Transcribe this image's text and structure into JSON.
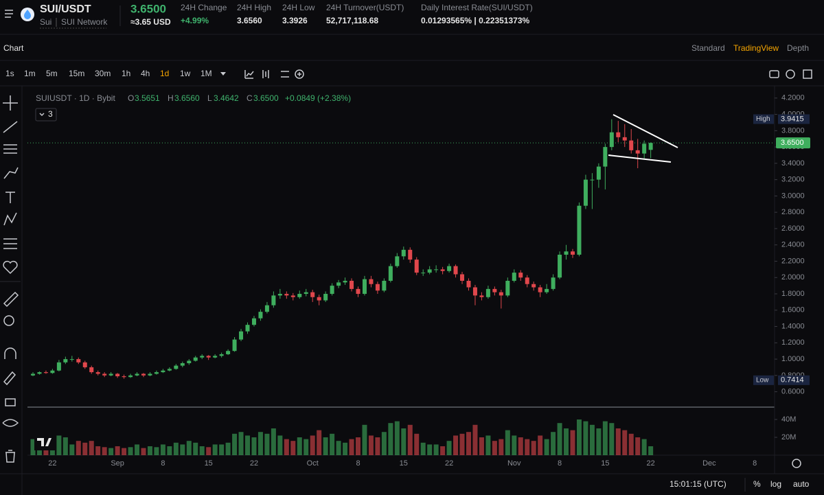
{
  "header": {
    "symbol": "SUI/USDT",
    "base": "Sui",
    "network": "SUI Network",
    "price": "3.6500",
    "usd_price": "≈3.65 USD",
    "stats": [
      {
        "label": "24H Change",
        "value": "+4.99%"
      },
      {
        "label": "24H High",
        "value": "3.6560"
      },
      {
        "label": "24H Low",
        "value": "3.3926"
      },
      {
        "label": "24H Turnover(USDT)",
        "value": "52,717,118.68"
      },
      {
        "label": "Daily Interest Rate(SUI/USDT)",
        "value": "0.01293565% | 0.22351373%"
      }
    ]
  },
  "tabs": {
    "title": "Chart",
    "views": [
      "Standard",
      "TradingView",
      "Depth"
    ],
    "active_view": 1
  },
  "timeframes": {
    "items": [
      "1s",
      "1m",
      "5m",
      "15m",
      "30m",
      "1h",
      "4h",
      "1d",
      "1w",
      "1M"
    ],
    "active": 7
  },
  "legend": {
    "symbol": "SUIUSDT · 1D · Bybit",
    "o_label": "O",
    "o": "3.5651",
    "h_label": "H",
    "h": "3.6560",
    "l_label": "L",
    "l": "3.4642",
    "c_label": "C",
    "c": "3.6500",
    "change": "+0.0849 (+2.38%)",
    "indicators": "3"
  },
  "chart_data": {
    "type": "candlestick",
    "up_color": "#3fae5e",
    "down_color": "#e0474c",
    "ylim": [
      0.42,
      4.35
    ],
    "yticks": [
      {
        "value": 4.2,
        "label": "4.2000"
      },
      {
        "value": 4.0,
        "label": "4.0000"
      },
      {
        "value": 3.8,
        "label": "3.8000"
      },
      {
        "value": 3.6,
        "label": "3.6000"
      },
      {
        "value": 3.4,
        "label": "3.4000"
      },
      {
        "value": 3.2,
        "label": "3.2000"
      },
      {
        "value": 3.0,
        "label": "3.0000"
      },
      {
        "value": 2.8,
        "label": "2.8000"
      },
      {
        "value": 2.6,
        "label": "2.6000"
      },
      {
        "value": 2.4,
        "label": "2.4000"
      },
      {
        "value": 2.2,
        "label": "2.2000"
      },
      {
        "value": 2.0,
        "label": "2.0000"
      },
      {
        "value": 1.8,
        "label": "1.8000"
      },
      {
        "value": 1.6,
        "label": "1.6000"
      },
      {
        "value": 1.4,
        "label": "1.4000"
      },
      {
        "value": 1.2,
        "label": "1.2000"
      },
      {
        "value": 1.0,
        "label": "1.0000"
      },
      {
        "value": 0.8,
        "label": "0.8000"
      },
      {
        "value": 0.6,
        "label": "0.6000"
      }
    ],
    "high_marker": {
      "label": "High",
      "value": 3.9415
    },
    "low_marker": {
      "label": "Low",
      "value": 0.7414
    },
    "last_price": {
      "value": 3.65,
      "label": "3.6500"
    },
    "x_labels": [
      "22",
      "Sep",
      "8",
      "15",
      "22",
      "Oct",
      "8",
      "15",
      "22",
      "Nov",
      "8",
      "15",
      "22",
      "Dec",
      "8"
    ],
    "candles": [
      [
        0.8,
        0.84,
        0.79,
        0.82
      ],
      [
        0.82,
        0.85,
        0.81,
        0.84
      ],
      [
        0.84,
        0.86,
        0.82,
        0.83
      ],
      [
        0.83,
        0.88,
        0.82,
        0.86
      ],
      [
        0.86,
        0.99,
        0.85,
        0.96
      ],
      [
        0.96,
        1.03,
        0.94,
        1.0
      ],
      [
        1.0,
        1.04,
        0.97,
        1.0
      ],
      [
        1.0,
        1.02,
        0.94,
        0.96
      ],
      [
        0.96,
        0.98,
        0.88,
        0.9
      ],
      [
        0.9,
        0.92,
        0.82,
        0.84
      ],
      [
        0.84,
        0.86,
        0.8,
        0.82
      ],
      [
        0.82,
        0.84,
        0.78,
        0.8
      ],
      [
        0.8,
        0.84,
        0.79,
        0.82
      ],
      [
        0.82,
        0.83,
        0.77,
        0.79
      ],
      [
        0.79,
        0.81,
        0.76,
        0.78
      ],
      [
        0.78,
        0.82,
        0.77,
        0.8
      ],
      [
        0.8,
        0.84,
        0.79,
        0.82
      ],
      [
        0.82,
        0.83,
        0.78,
        0.8
      ],
      [
        0.8,
        0.84,
        0.79,
        0.82
      ],
      [
        0.82,
        0.86,
        0.81,
        0.84
      ],
      [
        0.84,
        0.88,
        0.83,
        0.86
      ],
      [
        0.86,
        0.9,
        0.85,
        0.88
      ],
      [
        0.88,
        0.94,
        0.87,
        0.92
      ],
      [
        0.92,
        0.97,
        0.9,
        0.95
      ],
      [
        0.95,
        1.0,
        0.93,
        0.98
      ],
      [
        0.98,
        1.04,
        0.97,
        1.02
      ],
      [
        1.02,
        1.06,
        1.0,
        1.04
      ],
      [
        1.04,
        1.05,
        0.99,
        1.02
      ],
      [
        1.02,
        1.06,
        1.01,
        1.04
      ],
      [
        1.04,
        1.08,
        1.02,
        1.06
      ],
      [
        1.06,
        1.12,
        1.05,
        1.1
      ],
      [
        1.1,
        1.27,
        1.09,
        1.24
      ],
      [
        1.24,
        1.37,
        1.22,
        1.34
      ],
      [
        1.34,
        1.45,
        1.31,
        1.42
      ],
      [
        1.42,
        1.53,
        1.4,
        1.5
      ],
      [
        1.5,
        1.61,
        1.47,
        1.58
      ],
      [
        1.58,
        1.7,
        1.56,
        1.66
      ],
      [
        1.66,
        1.83,
        1.63,
        1.78
      ],
      [
        1.78,
        1.86,
        1.74,
        1.8
      ],
      [
        1.8,
        1.83,
        1.74,
        1.78
      ],
      [
        1.78,
        1.81,
        1.72,
        1.76
      ],
      [
        1.76,
        1.84,
        1.74,
        1.8
      ],
      [
        1.8,
        1.86,
        1.77,
        1.82
      ],
      [
        1.82,
        1.85,
        1.7,
        1.76
      ],
      [
        1.76,
        1.79,
        1.66,
        1.72
      ],
      [
        1.72,
        1.83,
        1.7,
        1.8
      ],
      [
        1.8,
        1.93,
        1.78,
        1.9
      ],
      [
        1.9,
        1.97,
        1.87,
        1.94
      ],
      [
        1.94,
        2.0,
        1.91,
        1.96
      ],
      [
        1.96,
        1.99,
        1.83,
        1.86
      ],
      [
        1.86,
        1.89,
        1.76,
        1.8
      ],
      [
        1.8,
        2.02,
        1.78,
        1.98
      ],
      [
        1.98,
        2.02,
        1.88,
        1.92
      ],
      [
        1.92,
        1.95,
        1.8,
        1.84
      ],
      [
        1.84,
        1.99,
        1.82,
        1.96
      ],
      [
        1.96,
        2.17,
        1.94,
        2.14
      ],
      [
        2.14,
        2.3,
        2.12,
        2.26
      ],
      [
        2.26,
        2.38,
        2.22,
        2.34
      ],
      [
        2.34,
        2.37,
        2.18,
        2.22
      ],
      [
        2.22,
        2.25,
        2.03,
        2.06
      ],
      [
        2.06,
        2.1,
        2.02,
        2.06
      ],
      [
        2.06,
        2.14,
        2.04,
        2.1
      ],
      [
        2.1,
        2.15,
        2.06,
        2.1
      ],
      [
        2.1,
        2.13,
        2.04,
        2.08
      ],
      [
        2.08,
        2.17,
        2.06,
        2.14
      ],
      [
        2.14,
        2.16,
        2.0,
        2.04
      ],
      [
        2.04,
        2.07,
        1.92,
        1.96
      ],
      [
        1.96,
        1.99,
        1.84,
        1.88
      ],
      [
        1.88,
        1.91,
        1.66,
        1.78
      ],
      [
        1.78,
        1.82,
        1.72,
        1.76
      ],
      [
        1.76,
        1.9,
        1.74,
        1.86
      ],
      [
        1.86,
        1.89,
        1.78,
        1.82
      ],
      [
        1.82,
        1.85,
        1.62,
        1.78
      ],
      [
        1.78,
        2.0,
        1.76,
        1.96
      ],
      [
        1.96,
        2.1,
        1.94,
        2.06
      ],
      [
        2.06,
        2.09,
        1.96,
        2.0
      ],
      [
        2.0,
        2.03,
        1.88,
        1.92
      ],
      [
        1.92,
        1.95,
        1.84,
        1.88
      ],
      [
        1.88,
        1.91,
        1.76,
        1.82
      ],
      [
        1.82,
        1.92,
        1.8,
        1.86
      ],
      [
        1.86,
        2.04,
        1.84,
        2.0
      ],
      [
        2.0,
        2.32,
        1.98,
        2.28
      ],
      [
        2.28,
        2.4,
        2.22,
        2.32
      ],
      [
        2.32,
        2.35,
        2.24,
        2.28
      ],
      [
        2.28,
        2.92,
        2.26,
        2.88
      ],
      [
        2.88,
        3.26,
        2.84,
        3.2
      ],
      [
        3.2,
        3.28,
        2.84,
        3.2
      ],
      [
        3.2,
        3.4,
        3.1,
        3.36
      ],
      [
        3.36,
        3.64,
        3.08,
        3.6
      ],
      [
        3.6,
        3.94,
        3.56,
        3.78
      ],
      [
        3.78,
        3.92,
        3.66,
        3.72
      ],
      [
        3.72,
        3.88,
        3.6,
        3.68
      ],
      [
        3.68,
        3.82,
        3.52,
        3.56
      ],
      [
        3.56,
        3.7,
        3.34,
        3.52
      ],
      [
        3.52,
        3.68,
        3.46,
        3.64
      ],
      [
        3.5651,
        3.656,
        3.4642,
        3.65
      ]
    ],
    "volume": {
      "ylim": [
        0,
        50000000
      ],
      "yticks": [
        {
          "value": 20000000,
          "label": "20M"
        },
        {
          "value": 40000000,
          "label": "40M"
        }
      ],
      "values": [
        18000000,
        10000000,
        12000000,
        12000000,
        22000000,
        20000000,
        12000000,
        16000000,
        14000000,
        16000000,
        10000000,
        9000000,
        8000000,
        10000000,
        8000000,
        9000000,
        12000000,
        8000000,
        10000000,
        9000000,
        12000000,
        10000000,
        14000000,
        12000000,
        16000000,
        14000000,
        10000000,
        9000000,
        12000000,
        12000000,
        14000000,
        24000000,
        26000000,
        22000000,
        20000000,
        26000000,
        24000000,
        30000000,
        22000000,
        18000000,
        16000000,
        20000000,
        18000000,
        22000000,
        28000000,
        20000000,
        24000000,
        16000000,
        14000000,
        18000000,
        20000000,
        34000000,
        22000000,
        20000000,
        26000000,
        36000000,
        38000000,
        30000000,
        34000000,
        24000000,
        14000000,
        12000000,
        12000000,
        10000000,
        16000000,
        22000000,
        24000000,
        26000000,
        34000000,
        20000000,
        22000000,
        16000000,
        18000000,
        28000000,
        22000000,
        20000000,
        18000000,
        16000000,
        22000000,
        18000000,
        26000000,
        36000000,
        30000000,
        28000000,
        40000000,
        38000000,
        34000000,
        30000000,
        38000000,
        36000000,
        30000000,
        28000000,
        24000000,
        20000000,
        18000000,
        10000000
      ]
    }
  },
  "footer": {
    "time": "15:01:15 (UTC)",
    "percent": "%",
    "log": "log",
    "auto": "auto"
  }
}
